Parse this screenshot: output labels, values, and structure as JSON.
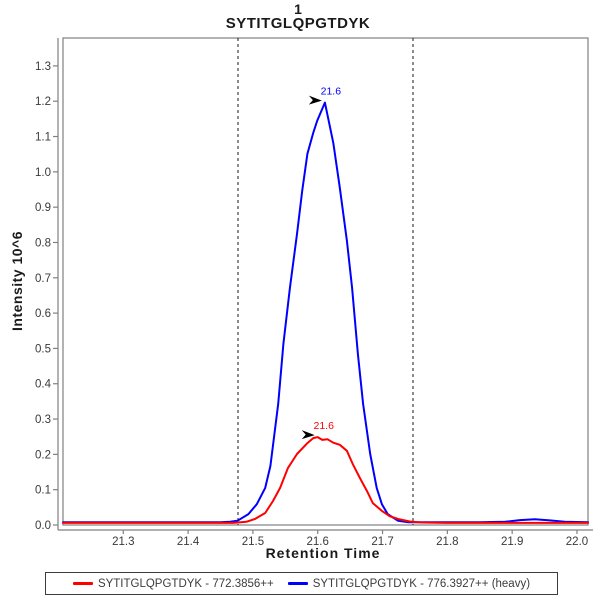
{
  "title": {
    "line1": "1",
    "line2": "SYTITGLQPGTDYK"
  },
  "axes": {
    "x": {
      "label": "Retention Time"
    },
    "y": {
      "label": "Intensity 10^6"
    }
  },
  "legend": {
    "items": [
      {
        "label": "SYTITGLQPGTDYK - 772.3856++",
        "color": "#FF0000"
      },
      {
        "label": "SYTITGLQPGTDYK - 776.3927++ (heavy)",
        "color": "#0000FF"
      }
    ]
  },
  "colors": {
    "light_series": "#FF0000",
    "heavy_series": "#0000FF",
    "plot_border": "#808080",
    "axis_line": "#808080",
    "tick_label": "#3a3a3a",
    "boundary_line": "#1a1a1a",
    "annotation_arrow": "#000000",
    "background": "#ffffff"
  },
  "chart_data": {
    "type": "line",
    "title": "1 SYTITGLQPGTDYK",
    "xlabel": "Retention Time",
    "ylabel": "Intensity 10^6",
    "xlim": [
      21.207,
      22.017
    ],
    "ylim": [
      0,
      1.379
    ],
    "x_ticks": [
      "21.3",
      "21.4",
      "21.5",
      "21.6",
      "21.7",
      "21.8",
      "21.9",
      "22.0"
    ],
    "y_ticks": [
      "0.0",
      "0.1",
      "0.2",
      "0.3",
      "0.4",
      "0.5",
      "0.6",
      "0.7",
      "0.8",
      "0.9",
      "1.0",
      "1.1",
      "1.2",
      "1.3"
    ],
    "grid": false,
    "legend_position": "bottom",
    "integration_boundaries": [
      21.477,
      21.747
    ],
    "annotations": [
      {
        "text": "21.6",
        "rt": 21.611,
        "intensity": 1.196,
        "color": "#0000FF"
      },
      {
        "text": "21.6",
        "rt": 21.6,
        "intensity": 0.249,
        "color": "#FF0000"
      }
    ],
    "series": [
      {
        "name": "SYTITGLQPGTDYK - 776.3927++ (heavy)",
        "color": "#0000FF",
        "peak_rt": 21.6,
        "peak_intensity_e6": 1.2,
        "points": [
          [
            21.207,
            0.008
          ],
          [
            21.3,
            0.008
          ],
          [
            21.4,
            0.008
          ],
          [
            21.45,
            0.008
          ],
          [
            21.465,
            0.009
          ],
          [
            21.476,
            0.012
          ],
          [
            21.493,
            0.031
          ],
          [
            21.506,
            0.059
          ],
          [
            21.519,
            0.105
          ],
          [
            21.527,
            0.167
          ],
          [
            21.539,
            0.343
          ],
          [
            21.547,
            0.513
          ],
          [
            21.557,
            0.671
          ],
          [
            21.568,
            0.824
          ],
          [
            21.576,
            0.946
          ],
          [
            21.584,
            1.051
          ],
          [
            21.593,
            1.11
          ],
          [
            21.599,
            1.144
          ],
          [
            21.611,
            1.196
          ],
          [
            21.624,
            1.082
          ],
          [
            21.634,
            0.955
          ],
          [
            21.645,
            0.805
          ],
          [
            21.653,
            0.671
          ],
          [
            21.662,
            0.484
          ],
          [
            21.67,
            0.343
          ],
          [
            21.681,
            0.201
          ],
          [
            21.691,
            0.105
          ],
          [
            21.699,
            0.059
          ],
          [
            21.708,
            0.031
          ],
          [
            21.724,
            0.012
          ],
          [
            21.74,
            0.008
          ],
          [
            21.8,
            0.008
          ],
          [
            21.85,
            0.008
          ],
          [
            21.889,
            0.009
          ],
          [
            21.912,
            0.014
          ],
          [
            21.935,
            0.016
          ],
          [
            21.958,
            0.013
          ],
          [
            21.981,
            0.009
          ],
          [
            22.017,
            0.008
          ]
        ]
      },
      {
        "name": "SYTITGLQPGTDYK - 772.3856++",
        "color": "#FF0000",
        "peak_rt": 21.6,
        "peak_intensity_e6": 0.25,
        "points": [
          [
            21.207,
            0.006
          ],
          [
            21.3,
            0.006
          ],
          [
            21.4,
            0.006
          ],
          [
            21.47,
            0.006
          ],
          [
            21.49,
            0.009
          ],
          [
            21.503,
            0.017
          ],
          [
            21.519,
            0.034
          ],
          [
            21.531,
            0.068
          ],
          [
            21.542,
            0.105
          ],
          [
            21.554,
            0.161
          ],
          [
            21.568,
            0.201
          ],
          [
            21.584,
            0.232
          ],
          [
            21.593,
            0.246
          ],
          [
            21.6,
            0.249
          ],
          [
            21.607,
            0.241
          ],
          [
            21.615,
            0.243
          ],
          [
            21.624,
            0.233
          ],
          [
            21.634,
            0.227
          ],
          [
            21.645,
            0.21
          ],
          [
            21.654,
            0.173
          ],
          [
            21.665,
            0.133
          ],
          [
            21.676,
            0.096
          ],
          [
            21.685,
            0.062
          ],
          [
            21.699,
            0.04
          ],
          [
            21.711,
            0.025
          ],
          [
            21.724,
            0.017
          ],
          [
            21.742,
            0.01
          ],
          [
            21.76,
            0.007
          ],
          [
            21.8,
            0.006
          ],
          [
            21.9,
            0.006
          ],
          [
            22.017,
            0.006
          ]
        ]
      }
    ]
  }
}
